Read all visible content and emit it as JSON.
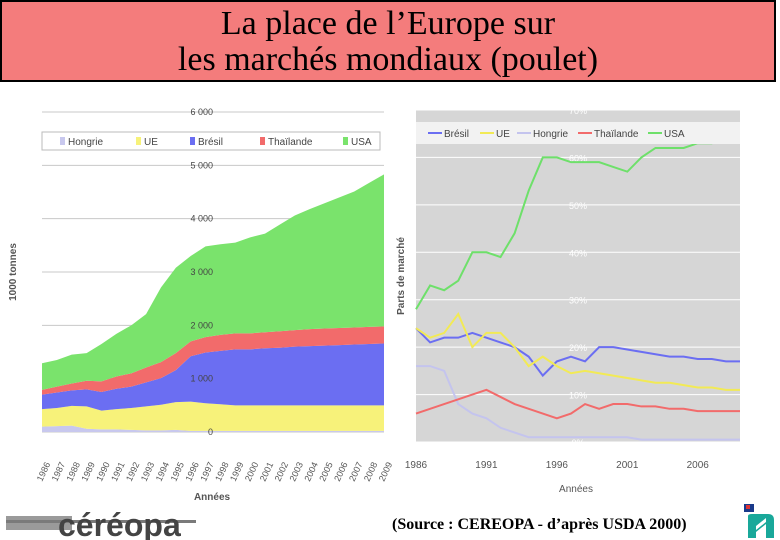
{
  "title": {
    "line1": "La place de l’Europe sur",
    "line2": "les marchés mondiaux (poulet)"
  },
  "source": "(Source : CEREOPA - d’après USDA 2000)",
  "logo": {
    "text": "céréopa",
    "name": "cereopa-logo"
  },
  "colors": {
    "USA": "#7ae36c",
    "Thailande": "#f26b6b",
    "Bresil": "#6b6ef2",
    "UE": "#f7f27a",
    "Hongrie": "#c8c8ee",
    "title_bg": "#f47c7c"
  },
  "chart_data": [
    {
      "type": "area",
      "stacked": true,
      "ylabel": "1000 tonnes",
      "xlabel": "Années",
      "ylim": [
        0,
        6000
      ],
      "yticks": [
        "0",
        "1 000",
        "2 000",
        "3 000",
        "4 000",
        "5 000",
        "6 000"
      ],
      "x": [
        "1986",
        "1987",
        "1988",
        "1989",
        "1990",
        "1991",
        "1992",
        "1993",
        "1994",
        "1995",
        "1996",
        "1997",
        "1998",
        "1999",
        "2000",
        "2001",
        "2002",
        "2003",
        "2004",
        "2005",
        "2006",
        "2007",
        "2008",
        "2009"
      ],
      "legend": [
        "Hongrie",
        "UE",
        "Brésil",
        "Thaïlande",
        "USA"
      ],
      "series": [
        {
          "name": "Hongrie",
          "values": [
            100,
            110,
            120,
            60,
            50,
            50,
            40,
            30,
            30,
            40,
            20,
            20,
            20,
            20,
            20,
            20,
            20,
            20,
            20,
            20,
            20,
            20,
            20,
            20
          ]
        },
        {
          "name": "UE",
          "values": [
            330,
            340,
            370,
            420,
            350,
            380,
            410,
            450,
            480,
            520,
            550,
            520,
            500,
            480,
            480,
            480,
            480,
            480,
            480,
            480,
            480,
            480,
            480,
            480
          ]
        },
        {
          "name": "Brésil",
          "values": [
            270,
            290,
            290,
            320,
            350,
            380,
            400,
            450,
            500,
            600,
            850,
            950,
            1000,
            1050,
            1050,
            1070,
            1080,
            1100,
            1110,
            1120,
            1130,
            1140,
            1150,
            1160
          ]
        },
        {
          "name": "Thaïlande",
          "values": [
            90,
            110,
            130,
            160,
            200,
            230,
            250,
            280,
            300,
            320,
            280,
            290,
            300,
            300,
            300,
            300,
            310,
            310,
            320,
            320,
            320,
            320,
            320,
            320
          ]
        },
        {
          "name": "USA",
          "values": [
            500,
            500,
            540,
            520,
            700,
            800,
            900,
            1000,
            1400,
            1600,
            1600,
            1700,
            1700,
            1700,
            1800,
            1850,
            2000,
            2150,
            2250,
            2350,
            2450,
            2550,
            2700,
            2850
          ]
        }
      ]
    },
    {
      "type": "line",
      "ylabel": "Parts de marché",
      "xlabel": "Années",
      "ylim": [
        0,
        70
      ],
      "yticks": [
        "0%",
        "10%",
        "20%",
        "30%",
        "40%",
        "50%",
        "60%",
        "70%"
      ],
      "xticks": [
        "1986",
        "1991",
        "1996",
        "2001",
        "2006"
      ],
      "legend": [
        "Brésil",
        "UE",
        "Hongrie",
        "Thaïlande",
        "USA"
      ],
      "x": [
        1986,
        1987,
        1988,
        1989,
        1990,
        1991,
        1992,
        1993,
        1994,
        1995,
        1996,
        1997,
        1998,
        1999,
        2000,
        2001,
        2002,
        2003,
        2004,
        2005,
        2006,
        2007,
        2008,
        2009
      ],
      "series": [
        {
          "name": "Brésil",
          "values": [
            24,
            21,
            22,
            22,
            23,
            22,
            21,
            20,
            18,
            14,
            17,
            18,
            17,
            20,
            20,
            19.5,
            19,
            18.5,
            18,
            18,
            17.5,
            17.5,
            17,
            17
          ]
        },
        {
          "name": "UE",
          "values": [
            24,
            22,
            23,
            27,
            20,
            23,
            23,
            20,
            16,
            18,
            16,
            14.5,
            15,
            14.5,
            14,
            13.5,
            13,
            12.5,
            12.5,
            12,
            11.5,
            11.5,
            11,
            11
          ]
        },
        {
          "name": "Hongrie",
          "values": [
            16,
            16,
            15,
            8,
            6,
            5,
            3,
            2,
            1,
            1,
            1,
            1,
            1,
            1,
            1,
            1,
            0.5,
            0.5,
            0.5,
            0.5,
            0.5,
            0.5,
            0.5,
            0.5
          ]
        },
        {
          "name": "Thaïlande",
          "values": [
            6,
            7,
            8,
            9,
            10,
            11,
            9.5,
            8,
            7,
            6,
            5,
            6,
            8,
            7,
            8,
            8,
            7.5,
            7.5,
            7,
            7,
            6.5,
            6.5,
            6.5,
            6.5
          ]
        },
        {
          "name": "USA",
          "values": [
            28,
            33,
            32,
            34,
            40,
            40,
            39,
            44,
            53,
            60,
            60,
            59,
            59,
            59,
            58,
            57,
            60,
            62,
            62,
            62,
            63,
            63,
            64,
            64
          ]
        }
      ]
    }
  ]
}
